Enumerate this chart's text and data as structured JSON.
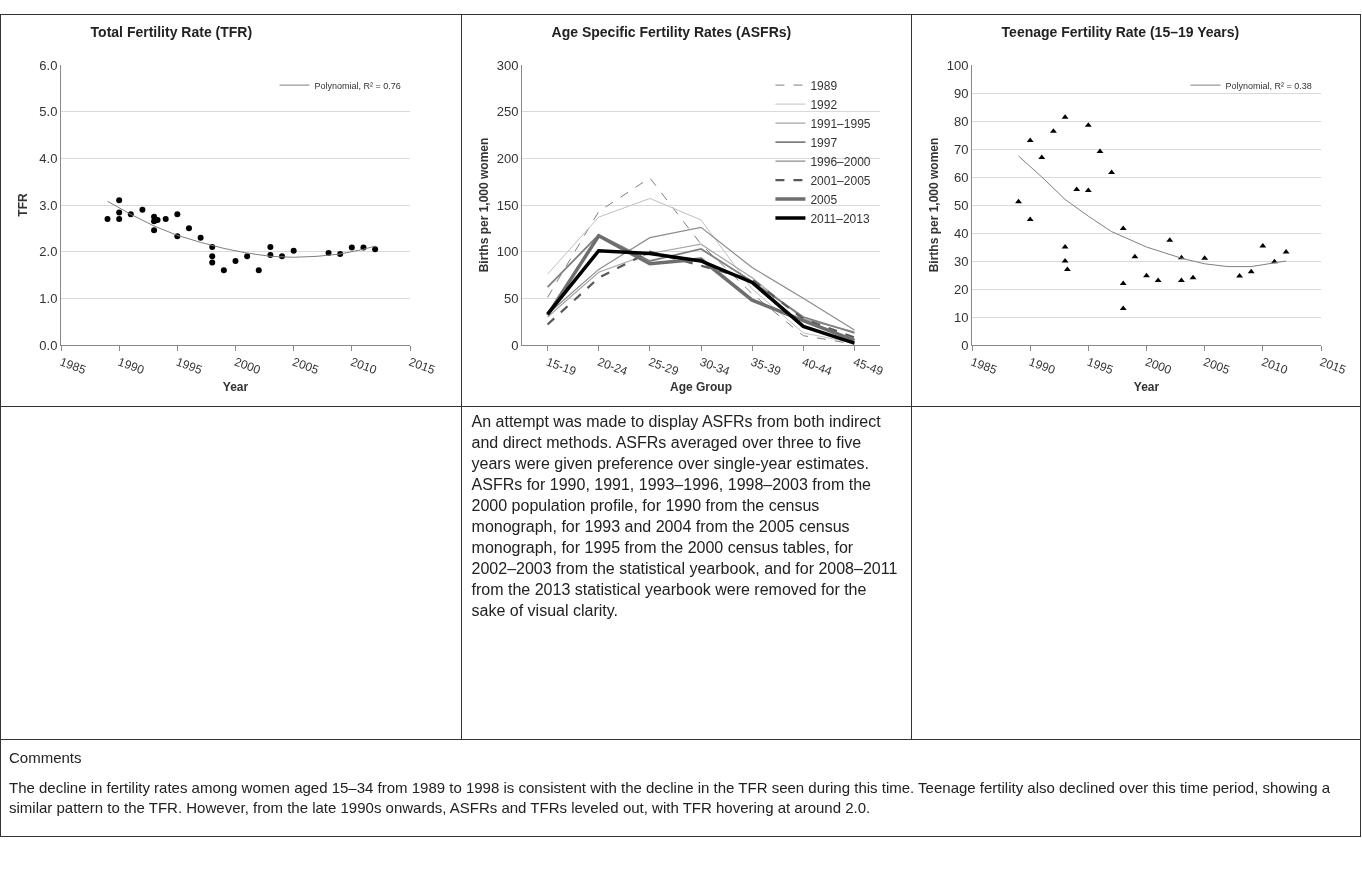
{
  "chart_data": [
    {
      "type": "scatter",
      "title": "Total Fertility Rate (TFR)",
      "xlabel": "Year",
      "ylabel": "TFR",
      "xlim": [
        1985,
        2015
      ],
      "xticks": [
        1985,
        1990,
        1995,
        2000,
        2005,
        2010,
        2015
      ],
      "ylim": [
        0,
        6
      ],
      "yticks": [
        {
          "value": 0,
          "label": "0.0"
        },
        {
          "value": 1,
          "label": "1.0"
        },
        {
          "value": 2,
          "label": "2.0"
        },
        {
          "value": 3,
          "label": "3.0"
        },
        {
          "value": 4,
          "label": "4.0"
        },
        {
          "value": 5,
          "label": "5.0"
        },
        {
          "value": 6,
          "label": "6.0"
        }
      ],
      "grid": "y",
      "legend": "top right",
      "series": [
        {
          "type": "scatter",
          "marker": "circle",
          "color": "#000000",
          "x": [
            1989,
            1990,
            1990,
            1990,
            1991,
            1992,
            1993,
            1993,
            1993.3,
            1993,
            1994,
            1995,
            1995,
            1996,
            1997,
            1998,
            1998,
            1998,
            1999,
            2000,
            2001,
            2002,
            2003,
            2003,
            2004,
            2005,
            2008,
            2009,
            2010,
            2011,
            2012
          ],
          "values": [
            2.7,
            3.1,
            2.84,
            2.7,
            2.8,
            2.9,
            2.75,
            2.65,
            2.68,
            2.46,
            2.7,
            2.8,
            2.33,
            2.5,
            2.3,
            2.1,
            1.9,
            1.77,
            1.6,
            1.8,
            1.9,
            1.6,
            2.1,
            1.93,
            1.9,
            2.02,
            1.97,
            1.95,
            2.09,
            2.09,
            2.05
          ]
        },
        {
          "type": "line",
          "marker": "none",
          "name": "Polynomial, R² = 0.76",
          "color": "#808080",
          "x": [
            1989,
            1991,
            1993,
            1995,
            1997,
            1999,
            2001,
            2003,
            2005,
            2007,
            2009,
            2011,
            2012
          ],
          "values": [
            3.08,
            2.8,
            2.55,
            2.35,
            2.2,
            2.07,
            1.97,
            1.9,
            1.88,
            1.9,
            1.95,
            2.05,
            2.12
          ]
        }
      ],
      "annotations": [
        "Comments",
        "The decline in fertility rates among women aged 15–34 from 1989 to 1998 is consistent with the decline in the TFR seen during this time. Teenage fertility also declined over this time period, showing a similar pattern to the TFR. However, from the late 1990s onwards, ASFRs and TFRs leveled out, with TFR hovering at around 2.0."
      ]
    },
    {
      "type": "line",
      "title": "Age Specific Fertility Rates (ASFRs)",
      "xlabel": "Age Group",
      "ylabel": "Births per 1,000 women",
      "categories": [
        "15-19",
        "20-24",
        "25-29",
        "30-34",
        "35-39",
        "40-44",
        "45-49"
      ],
      "ylim": [
        0,
        300
      ],
      "yticks": [
        0,
        50,
        100,
        150,
        200,
        250,
        300
      ],
      "grid": "y",
      "legend": "top right",
      "marker": "none",
      "series": [
        {
          "name": "1989",
          "color": "#808080",
          "line_style": "dashed",
          "values": [
            51,
            143,
            179,
            108,
            55,
            10,
            1
          ]
        },
        {
          "name": "1992",
          "color": "#c0c0c0",
          "line_style": "solid",
          "values": [
            76,
            137,
            157,
            134,
            60,
            13,
            2
          ]
        },
        {
          "name": "1991–1995",
          "color": "#a6a6a6",
          "line_style": "solid",
          "values": [
            30,
            78,
            98,
            108,
            72,
            28,
            14
          ]
        },
        {
          "name": "1997",
          "color": "#7f7f7f",
          "line_style": "solid",
          "values": [
            62,
            118,
            90,
            103,
            68,
            30,
            13
          ]
        },
        {
          "name": "1996–2000",
          "color": "#8c8c8c",
          "line_style": "solid",
          "values": [
            33,
            81,
            115,
            126,
            83,
            50,
            16
          ]
        },
        {
          "name": "2001–2005",
          "color": "#595959",
          "line_style": "dashed",
          "values": [
            22,
            72,
            100,
            85,
            70,
            28,
            8
          ]
        },
        {
          "name": "2005",
          "color": "#6e6e6e",
          "line_style": "solid",
          "values": [
            32,
            117,
            87,
            92,
            48,
            26,
            5
          ]
        },
        {
          "name": "2011–2013",
          "color": "#000000",
          "line_style": "solid",
          "values": [
            33,
            101,
            98,
            90,
            67,
            20,
            2
          ]
        }
      ],
      "annotations": [
        "An attempt was made to display ASFRs from both indirect and direct methods. ASFRs averaged over three to five years were given preference over single-year estimates. ASFRs for 1990, 1991, 1993–1996, 1998–2003 from the 2000 population profile, for 1990 from the census monograph, for 1993 and 2004 from the 2005 census monograph, for 1995 from the 2000 census tables, for 2002–2003 from the statistical yearbook, and for 2008–2011 from the 2013 statistical yearbook were removed for the sake of visual clarity."
      ]
    },
    {
      "type": "scatter",
      "title": "Teenage Fertility Rate (15–19 Years)",
      "xlabel": "Year",
      "ylabel": "Births per 1,000 women",
      "xlim": [
        1985,
        2015
      ],
      "xticks": [
        1985,
        1990,
        1995,
        2000,
        2005,
        2010,
        2015
      ],
      "ylim": [
        0,
        100
      ],
      "yticks": [
        0,
        10,
        20,
        30,
        40,
        50,
        60,
        70,
        80,
        90,
        100
      ],
      "grid": "y",
      "legend": "top right",
      "series": [
        {
          "type": "scatter",
          "marker": "triangle",
          "color": "#000000",
          "x": [
            1989,
            1990,
            1990,
            1991,
            1992,
            1993,
            1993,
            1993,
            1993.2,
            1994,
            1995,
            1995,
            1996,
            1997,
            1998,
            1998,
            1998,
            1999,
            2000,
            2001,
            2002,
            2003,
            2003,
            2004,
            2005,
            2008,
            2009,
            2010,
            2011,
            2012
          ],
          "values": [
            51.2,
            73,
            44.8,
            67,
            76.3,
            81.3,
            35,
            30,
            27,
            55.5,
            78.5,
            55.2,
            69.1,
            61.6,
            41.6,
            22,
            13,
            31.5,
            24.7,
            23,
            37.4,
            31.2,
            23,
            24,
            31,
            24.6,
            26.2,
            35.4,
            29.7,
            33.2
          ]
        },
        {
          "type": "line",
          "marker": "none",
          "name": "Polynomial, R² = 0.38",
          "color": "#808080",
          "x": [
            1989,
            1991,
            1993,
            1995,
            1997,
            2000,
            2003,
            2005,
            2007,
            2009,
            2012
          ],
          "values": [
            67.5,
            60,
            52,
            46,
            40.5,
            35,
            31,
            29,
            28,
            28,
            30
          ]
        }
      ]
    }
  ]
}
